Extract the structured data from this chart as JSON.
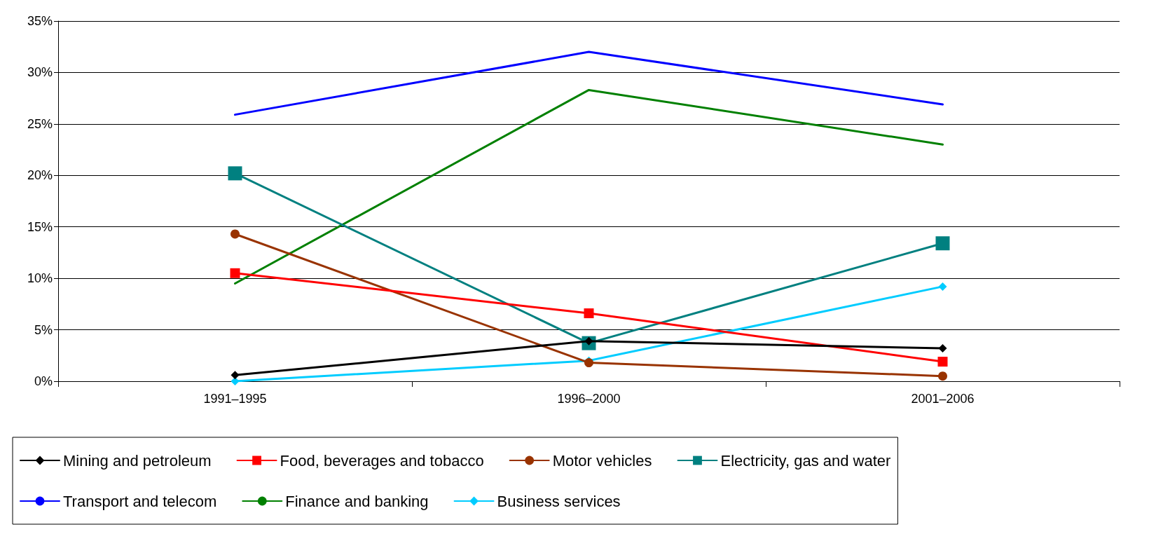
{
  "chart_data": {
    "type": "line",
    "categories": [
      "1991–1995",
      "1996–2000",
      "2001–2006"
    ],
    "series": [
      {
        "name": "Mining and petroleum",
        "color": "#000000",
        "marker": "diamond",
        "values": [
          0.6,
          3.9,
          3.2
        ]
      },
      {
        "name": "Food, beverages and tobacco",
        "color": "#ff0000",
        "marker": "square",
        "values": [
          10.5,
          6.6,
          1.9
        ]
      },
      {
        "name": "Motor vehicles",
        "color": "#993300",
        "marker": "circle",
        "values": [
          14.3,
          1.8,
          0.5
        ]
      },
      {
        "name": "Electricity, gas and water",
        "color": "#008080",
        "marker": "square",
        "values": [
          20.2,
          3.7,
          13.4
        ]
      },
      {
        "name": "Transport and telecom",
        "color": "#0000ff",
        "marker": "none",
        "values": [
          25.9,
          32.0,
          26.9
        ]
      },
      {
        "name": "Finance and banking",
        "color": "#008000",
        "marker": "none",
        "values": [
          9.5,
          28.3,
          23.0
        ]
      },
      {
        "name": "Business services",
        "color": "#00ccff",
        "marker": "diamond",
        "values": [
          0.0,
          2.0,
          9.2
        ]
      }
    ],
    "ylim": [
      0,
      35
    ],
    "yticks": [
      {
        "value": 0,
        "label": "0%"
      },
      {
        "value": 5,
        "label": "5%"
      },
      {
        "value": 10,
        "label": "10%"
      },
      {
        "value": 15,
        "label": "15%"
      },
      {
        "value": 20,
        "label": "20%"
      },
      {
        "value": 25,
        "label": "25%"
      },
      {
        "value": 30,
        "label": "30%"
      },
      {
        "value": 35,
        "label": "35%"
      }
    ],
    "grid": "y",
    "legend": "bottom",
    "line_style": "solid"
  }
}
